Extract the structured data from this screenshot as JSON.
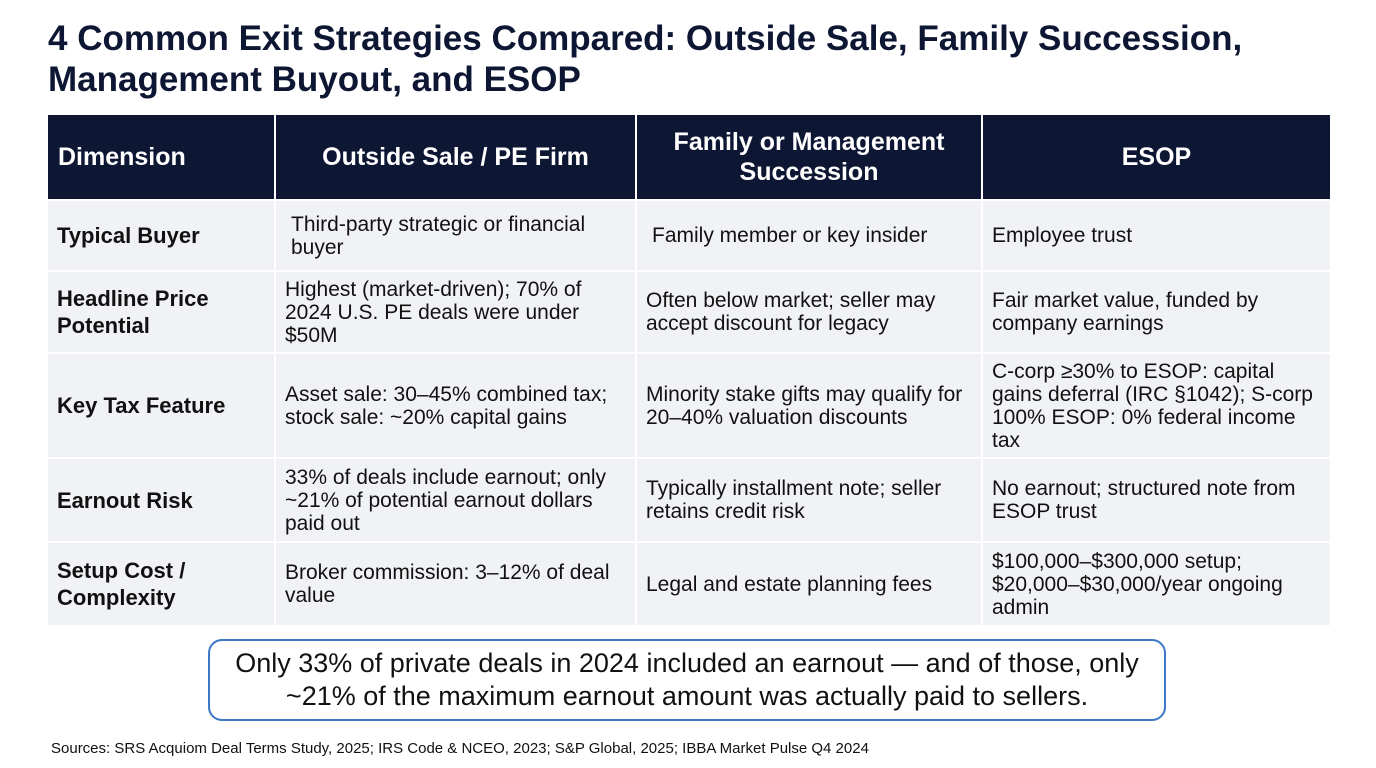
{
  "title": "4 Common Exit Strategies Compared: Outside Sale, Family Succession, Management Buyout, and ESOP",
  "table": {
    "headers": [
      "Dimension",
      "Outside Sale / PE Firm",
      "Family or Management Succession",
      "ESOP"
    ],
    "rows": [
      [
        "Typical Buyer",
        "Third-party strategic or financial buyer",
        "Family member or key insider",
        "Employee trust"
      ],
      [
        "Headline Price Potential",
        "Highest (market-driven); 70% of 2024 U.S. PE deals were under $50M",
        "Often below market; seller may accept discount for legacy",
        "Fair market value, funded by company earnings"
      ],
      [
        "Key Tax Feature",
        "Asset sale: 30–45% combined tax; stock sale: ~20% capital gains",
        "Minority stake gifts may qualify for 20–40% valuation discounts",
        "C-corp ≥30% to ESOP: capital gains deferral (IRC §1042); S-corp 100% ESOP: 0% federal income tax"
      ],
      [
        "Earnout Risk",
        "33% of deals include earnout; only ~21% of potential earnout dollars paid out",
        "Typically installment note; seller retains credit risk",
        "No earnout; structured note from ESOP trust"
      ],
      [
        "Setup Cost / Complexity",
        "Broker commission: 3–12% of deal value",
        "Legal and estate planning fees",
        "$100,000–$300,000 setup; $20,000–$30,000/year ongoing admin"
      ]
    ]
  },
  "callout": "Only 33% of private deals in 2024 included an earnout — and of those, only ~21% of the maximum earnout amount was actually paid to sellers.",
  "sources": "Sources: SRS Acquiom Deal Terms Study, 2025; IRS Code & NCEO, 2023; S&P Global, 2025; IBBA Market Pulse Q4 2024",
  "colors": {
    "header_bg": "#0d1633",
    "cell_bg": "#f0f2f5",
    "callout_border": "#3d78c8"
  }
}
